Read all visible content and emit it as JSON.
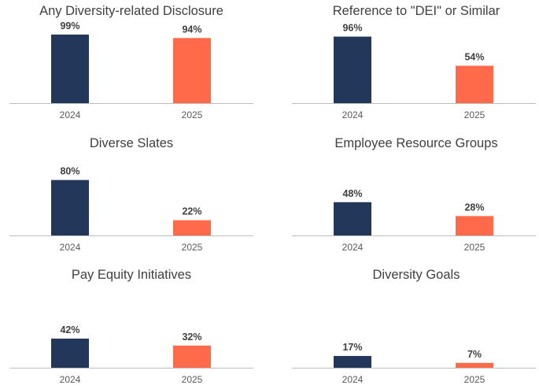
{
  "colors": {
    "2024": "#22375a",
    "2025": "#ff6b4a"
  },
  "chart_data": [
    {
      "type": "bar",
      "title": "Any Diversity-related Disclosure",
      "categories": [
        "2024",
        "2025"
      ],
      "values": [
        99,
        94
      ],
      "value_labels": [
        "99%",
        "94%"
      ],
      "ylim": [
        0,
        100
      ],
      "grid": false
    },
    {
      "type": "bar",
      "title": "Reference to \"DEI\" or Similar",
      "categories": [
        "2024",
        "2025"
      ],
      "values": [
        96,
        54
      ],
      "value_labels": [
        "96%",
        "54%"
      ],
      "ylim": [
        0,
        100
      ],
      "grid": false
    },
    {
      "type": "bar",
      "title": "Diverse Slates",
      "categories": [
        "2024",
        "2025"
      ],
      "values": [
        80,
        22
      ],
      "value_labels": [
        "80%",
        "22%"
      ],
      "ylim": [
        0,
        100
      ],
      "grid": false
    },
    {
      "type": "bar",
      "title": "Employee Resource Groups",
      "categories": [
        "2024",
        "2025"
      ],
      "values": [
        48,
        28
      ],
      "value_labels": [
        "48%",
        "28%"
      ],
      "ylim": [
        0,
        100
      ],
      "grid": false
    },
    {
      "type": "bar",
      "title": "Pay Equity Initiatives",
      "categories": [
        "2024",
        "2025"
      ],
      "values": [
        42,
        32
      ],
      "value_labels": [
        "42%",
        "32%"
      ],
      "ylim": [
        0,
        100
      ],
      "grid": false
    },
    {
      "type": "bar",
      "title": "Diversity Goals",
      "categories": [
        "2024",
        "2025"
      ],
      "values": [
        17,
        7
      ],
      "value_labels": [
        "17%",
        "7%"
      ],
      "ylim": [
        0,
        100
      ],
      "grid": false
    }
  ]
}
